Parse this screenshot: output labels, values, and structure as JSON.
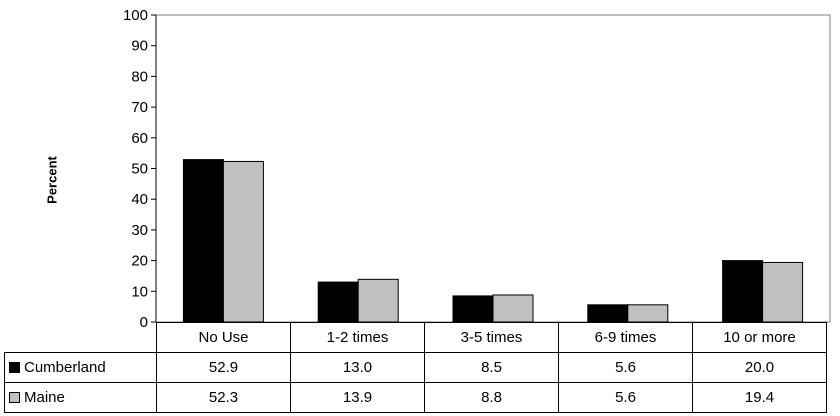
{
  "chart_data": {
    "type": "bar",
    "categories": [
      "No Use",
      "1-2 times",
      "3-5 times",
      "6-9 times",
      "10 or more"
    ],
    "series": [
      {
        "name": "Cumberland",
        "color": "#000000",
        "values": [
          52.9,
          13.0,
          8.5,
          5.6,
          20.0
        ],
        "labels": [
          "52.9",
          "13.0",
          "8.5",
          "5.6",
          "20.0"
        ]
      },
      {
        "name": "Maine",
        "color": "#c0c0c0",
        "values": [
          52.3,
          13.9,
          8.8,
          5.6,
          19.4
        ],
        "labels": [
          "52.3",
          "13.9",
          "8.8",
          "5.6",
          "19.4"
        ]
      }
    ],
    "ylabel": "Percent",
    "ylim": [
      0,
      100
    ],
    "yticks": [
      "0",
      "10",
      "20",
      "30",
      "40",
      "50",
      "60",
      "70",
      "80",
      "90",
      "100"
    ],
    "grid": false,
    "legend": "data-table"
  }
}
